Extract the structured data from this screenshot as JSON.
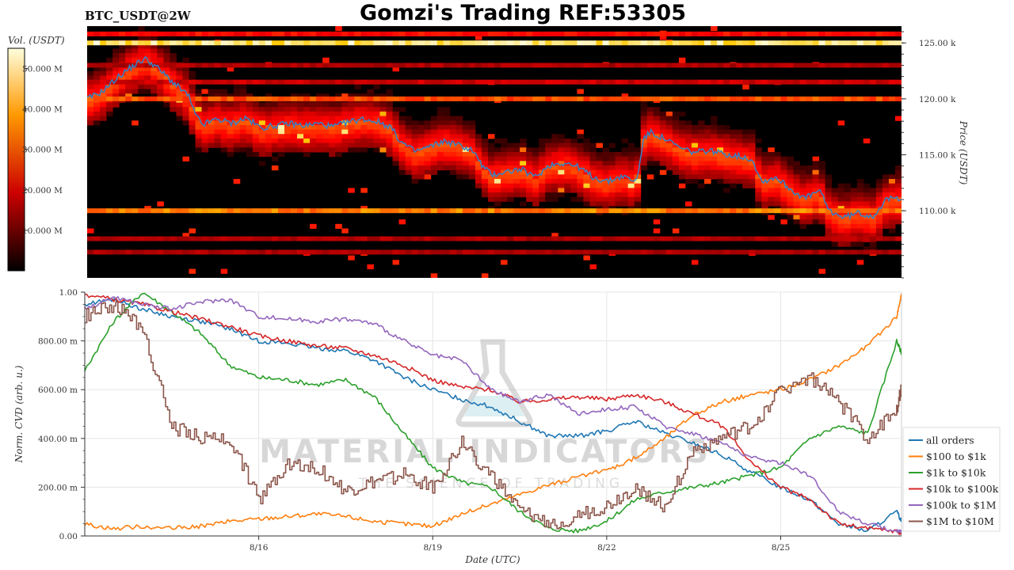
{
  "header": {
    "title": "Gomzi's Trading REF:53305",
    "symbol": "BTC_USDT@2W"
  },
  "watermark": {
    "name": "MATERIAL INDICATORS",
    "tagline": "THE SCIENCE OF TRADING"
  },
  "chart_data": [
    {
      "type": "heatmap",
      "title": "",
      "colorbar": {
        "label": "Vol. (USDT)",
        "ticks": [
          "10.000 M",
          "20.000 M",
          "30.000 M",
          "40.000 M",
          "50.000 M"
        ],
        "tick_values": [
          10,
          20,
          30,
          40,
          50
        ],
        "range": [
          0,
          55
        ],
        "colormap": "hot"
      },
      "ylabel": "Price (USDT)",
      "y_ticks": [
        "110.00 k",
        "115.00 k",
        "120.00 k",
        "125.00 k"
      ],
      "y_tick_values": [
        110,
        115,
        120,
        125
      ],
      "ylim": [
        104,
        126.5
      ],
      "xlim": [
        "8/13 00:00",
        "8/27 02:00"
      ],
      "price_line_color": "#3a7fc1",
      "price_series": [
        {
          "x": "8/13 00:00",
          "y": 120.0
        },
        {
          "x": "8/13 06:00",
          "y": 120.6
        },
        {
          "x": "8/13 12:00",
          "y": 121.8
        },
        {
          "x": "8/13 18:00",
          "y": 122.8
        },
        {
          "x": "8/14 00:00",
          "y": 123.6
        },
        {
          "x": "8/14 04:00",
          "y": 123.0
        },
        {
          "x": "8/14 08:00",
          "y": 122.2
        },
        {
          "x": "8/14 12:00",
          "y": 121.4
        },
        {
          "x": "8/14 18:00",
          "y": 120.3
        },
        {
          "x": "8/14 21:00",
          "y": 118.5
        },
        {
          "x": "8/15 00:00",
          "y": 117.7
        },
        {
          "x": "8/15 06:00",
          "y": 118.2
        },
        {
          "x": "8/15 12:00",
          "y": 117.8
        },
        {
          "x": "8/15 18:00",
          "y": 118.3
        },
        {
          "x": "8/16 00:00",
          "y": 117.4
        },
        {
          "x": "8/16 06:00",
          "y": 117.6
        },
        {
          "x": "8/16 12:00",
          "y": 117.8
        },
        {
          "x": "8/16 18:00",
          "y": 117.6
        },
        {
          "x": "8/17 00:00",
          "y": 117.8
        },
        {
          "x": "8/17 06:00",
          "y": 117.5
        },
        {
          "x": "8/17 12:00",
          "y": 117.9
        },
        {
          "x": "8/17 18:00",
          "y": 118.2
        },
        {
          "x": "8/18 00:00",
          "y": 118.0
        },
        {
          "x": "8/18 06:00",
          "y": 117.5
        },
        {
          "x": "8/18 10:00",
          "y": 116.2
        },
        {
          "x": "8/18 16:00",
          "y": 115.3
        },
        {
          "x": "8/18 22:00",
          "y": 115.7
        },
        {
          "x": "8/19 04:00",
          "y": 116.2
        },
        {
          "x": "8/19 10:00",
          "y": 115.9
        },
        {
          "x": "8/19 16:00",
          "y": 115.4
        },
        {
          "x": "8/19 20:00",
          "y": 114.0
        },
        {
          "x": "8/20 00:00",
          "y": 113.2
        },
        {
          "x": "8/20 06:00",
          "y": 113.5
        },
        {
          "x": "8/20 12:00",
          "y": 113.7
        },
        {
          "x": "8/20 18:00",
          "y": 113.0
        },
        {
          "x": "8/21 00:00",
          "y": 114.1
        },
        {
          "x": "8/21 06:00",
          "y": 114.3
        },
        {
          "x": "8/21 12:00",
          "y": 113.9
        },
        {
          "x": "8/21 18:00",
          "y": 113.0
        },
        {
          "x": "8/22 00:00",
          "y": 112.6
        },
        {
          "x": "8/22 06:00",
          "y": 113.1
        },
        {
          "x": "8/22 12:00",
          "y": 112.6
        },
        {
          "x": "8/22 15:00",
          "y": 116.5
        },
        {
          "x": "8/22 18:00",
          "y": 117.0
        },
        {
          "x": "8/23 00:00",
          "y": 116.4
        },
        {
          "x": "8/23 06:00",
          "y": 115.6
        },
        {
          "x": "8/23 12:00",
          "y": 115.2
        },
        {
          "x": "8/23 18:00",
          "y": 115.4
        },
        {
          "x": "8/24 00:00",
          "y": 115.1
        },
        {
          "x": "8/24 06:00",
          "y": 114.9
        },
        {
          "x": "8/24 12:00",
          "y": 114.6
        },
        {
          "x": "8/24 16:00",
          "y": 112.6
        },
        {
          "x": "8/24 22:00",
          "y": 113.0
        },
        {
          "x": "8/25 04:00",
          "y": 111.9
        },
        {
          "x": "8/25 10:00",
          "y": 111.1
        },
        {
          "x": "8/25 16:00",
          "y": 111.8
        },
        {
          "x": "8/25 20:00",
          "y": 110.0
        },
        {
          "x": "8/26 02:00",
          "y": 109.4
        },
        {
          "x": "8/26 08:00",
          "y": 109.8
        },
        {
          "x": "8/26 14:00",
          "y": 109.5
        },
        {
          "x": "8/26 20:00",
          "y": 111.0
        },
        {
          "x": "8/27 02:00",
          "y": 111.2
        }
      ],
      "levels": [
        {
          "price": 125.0,
          "intensity": 1.0
        },
        {
          "price": 110.0,
          "intensity": 0.7
        },
        {
          "price": 120.0,
          "intensity": 0.6
        },
        {
          "price": 125.8,
          "intensity": 0.45
        },
        {
          "price": 123.0,
          "intensity": 0.3
        },
        {
          "price": 121.5,
          "intensity": 0.35
        },
        {
          "price": 107.5,
          "intensity": 0.3
        },
        {
          "price": 106.3,
          "intensity": 0.3
        }
      ]
    },
    {
      "type": "line",
      "xlabel": "Date (UTC)",
      "ylabel": "Norm. CVD (arb. u.)",
      "x_ticks": [
        "8/16",
        "8/19",
        "8/22",
        "8/25"
      ],
      "x_tick_values": [
        "8/16 00:00",
        "8/19 00:00",
        "8/22 00:00",
        "8/25 00:00"
      ],
      "y_ticks": [
        "0.00",
        "200.00 m",
        "400.00 m",
        "600.00 m",
        "800.00 m",
        "1.00"
      ],
      "y_tick_values": [
        0,
        0.2,
        0.4,
        0.6,
        0.8,
        1.0
      ],
      "ylim": [
        0,
        1.0
      ],
      "xlim": [
        "8/13 00:00",
        "8/27 02:00"
      ],
      "grid": true,
      "legend_position": "right",
      "series": [
        {
          "name": "all orders",
          "color": "#1f77b4",
          "x": [
            "8/13 00:00",
            "8/13 12:00",
            "8/14 00:00",
            "8/14 12:00",
            "8/15 00:00",
            "8/15 12:00",
            "8/16 00:00",
            "8/16 12:00",
            "8/17 00:00",
            "8/17 12:00",
            "8/18 00:00",
            "8/18 12:00",
            "8/19 00:00",
            "8/19 12:00",
            "8/20 00:00",
            "8/20 12:00",
            "8/21 00:00",
            "8/21 12:00",
            "8/22 00:00",
            "8/22 12:00",
            "8/23 00:00",
            "8/23 12:00",
            "8/24 00:00",
            "8/24 12:00",
            "8/25 00:00",
            "8/25 12:00",
            "8/26 00:00",
            "8/26 12:00",
            "8/27 00:00",
            "8/27 02:00"
          ],
          "y": [
            0.95,
            0.97,
            0.93,
            0.9,
            0.88,
            0.85,
            0.8,
            0.79,
            0.77,
            0.76,
            0.72,
            0.65,
            0.6,
            0.56,
            0.53,
            0.47,
            0.41,
            0.41,
            0.43,
            0.47,
            0.42,
            0.38,
            0.33,
            0.26,
            0.2,
            0.15,
            0.05,
            0.02,
            0.1,
            0.06
          ]
        },
        {
          "name": "$100 to $1k",
          "color": "#ff7f0e",
          "x": [
            "8/13 00:00",
            "8/13 12:00",
            "8/14 00:00",
            "8/14 12:00",
            "8/15 00:00",
            "8/15 12:00",
            "8/16 00:00",
            "8/16 12:00",
            "8/17 00:00",
            "8/17 12:00",
            "8/18 00:00",
            "8/18 12:00",
            "8/19 00:00",
            "8/19 12:00",
            "8/20 00:00",
            "8/20 12:00",
            "8/21 00:00",
            "8/21 12:00",
            "8/22 00:00",
            "8/22 12:00",
            "8/23 00:00",
            "8/23 12:00",
            "8/24 00:00",
            "8/24 12:00",
            "8/25 00:00",
            "8/25 12:00",
            "8/26 00:00",
            "8/26 12:00",
            "8/27 00:00",
            "8/27 02:00"
          ],
          "y": [
            0.05,
            0.03,
            0.04,
            0.03,
            0.04,
            0.06,
            0.07,
            0.08,
            0.09,
            0.08,
            0.06,
            0.05,
            0.04,
            0.09,
            0.13,
            0.17,
            0.21,
            0.24,
            0.27,
            0.32,
            0.4,
            0.5,
            0.55,
            0.58,
            0.6,
            0.64,
            0.7,
            0.78,
            0.9,
            0.99
          ]
        },
        {
          "name": "$1k to $10k",
          "color": "#2ca02c",
          "x": [
            "8/13 00:00",
            "8/13 12:00",
            "8/14 00:00",
            "8/14 12:00",
            "8/15 00:00",
            "8/15 12:00",
            "8/16 00:00",
            "8/16 12:00",
            "8/17 00:00",
            "8/17 12:00",
            "8/18 00:00",
            "8/18 12:00",
            "8/19 00:00",
            "8/19 12:00",
            "8/20 00:00",
            "8/20 12:00",
            "8/21 00:00",
            "8/21 12:00",
            "8/22 00:00",
            "8/22 12:00",
            "8/23 00:00",
            "8/23 12:00",
            "8/24 00:00",
            "8/24 12:00",
            "8/25 00:00",
            "8/25 12:00",
            "8/26 00:00",
            "8/26 12:00",
            "8/27 00:00",
            "8/27 02:00"
          ],
          "y": [
            0.68,
            0.88,
            1.0,
            0.92,
            0.83,
            0.7,
            0.65,
            0.64,
            0.62,
            0.64,
            0.57,
            0.42,
            0.28,
            0.22,
            0.2,
            0.1,
            0.03,
            0.02,
            0.06,
            0.15,
            0.18,
            0.2,
            0.22,
            0.25,
            0.28,
            0.4,
            0.45,
            0.42,
            0.8,
            0.75
          ]
        },
        {
          "name": "$10k to $100k",
          "color": "#d62728",
          "x": [
            "8/13 00:00",
            "8/13 12:00",
            "8/14 00:00",
            "8/14 12:00",
            "8/15 00:00",
            "8/15 12:00",
            "8/16 00:00",
            "8/16 12:00",
            "8/17 00:00",
            "8/17 12:00",
            "8/18 00:00",
            "8/18 12:00",
            "8/19 00:00",
            "8/19 12:00",
            "8/20 00:00",
            "8/20 12:00",
            "8/21 00:00",
            "8/21 12:00",
            "8/22 00:00",
            "8/22 12:00",
            "8/23 00:00",
            "8/23 12:00",
            "8/24 00:00",
            "8/24 12:00",
            "8/25 00:00",
            "8/25 12:00",
            "8/26 00:00",
            "8/26 12:00",
            "8/27 00:00",
            "8/27 02:00"
          ],
          "y": [
            0.99,
            0.97,
            0.95,
            0.92,
            0.89,
            0.86,
            0.82,
            0.8,
            0.78,
            0.77,
            0.74,
            0.7,
            0.64,
            0.61,
            0.6,
            0.55,
            0.56,
            0.57,
            0.56,
            0.58,
            0.55,
            0.5,
            0.45,
            0.3,
            0.2,
            0.15,
            0.05,
            0.03,
            0.02,
            0.01
          ]
        },
        {
          "name": "$100k to $1M",
          "color": "#9467bd",
          "x": [
            "8/13 00:00",
            "8/13 12:00",
            "8/14 00:00",
            "8/14 12:00",
            "8/15 00:00",
            "8/15 12:00",
            "8/16 00:00",
            "8/16 12:00",
            "8/17 00:00",
            "8/17 12:00",
            "8/18 00:00",
            "8/18 12:00",
            "8/19 00:00",
            "8/19 12:00",
            "8/20 00:00",
            "8/20 12:00",
            "8/21 00:00",
            "8/21 12:00",
            "8/22 00:00",
            "8/22 12:00",
            "8/23 00:00",
            "8/23 12:00",
            "8/24 00:00",
            "8/24 12:00",
            "8/25 00:00",
            "8/25 12:00",
            "8/26 00:00",
            "8/26 12:00",
            "8/27 00:00",
            "8/27 02:00"
          ],
          "y": [
            0.93,
            0.98,
            0.95,
            0.93,
            0.96,
            0.97,
            0.9,
            0.89,
            0.88,
            0.89,
            0.87,
            0.8,
            0.74,
            0.72,
            0.6,
            0.55,
            0.58,
            0.5,
            0.52,
            0.53,
            0.45,
            0.42,
            0.38,
            0.32,
            0.3,
            0.25,
            0.1,
            0.05,
            0.02,
            0.02
          ]
        },
        {
          "name": "$1M to $10M",
          "color": "#8c564b",
          "x": [
            "8/13 00:00",
            "8/13 12:00",
            "8/14 00:00",
            "8/14 12:00",
            "8/15 00:00",
            "8/15 12:00",
            "8/16 00:00",
            "8/16 12:00",
            "8/17 00:00",
            "8/17 12:00",
            "8/18 00:00",
            "8/18 12:00",
            "8/19 00:00",
            "8/19 12:00",
            "8/20 00:00",
            "8/20 12:00",
            "8/21 00:00",
            "8/21 12:00",
            "8/22 00:00",
            "8/22 12:00",
            "8/23 00:00",
            "8/23 12:00",
            "8/24 00:00",
            "8/24 12:00",
            "8/25 00:00",
            "8/25 12:00",
            "8/26 00:00",
            "8/26 12:00",
            "8/27 00:00",
            "8/27 02:00"
          ],
          "y": [
            0.9,
            0.95,
            0.85,
            0.45,
            0.4,
            0.4,
            0.15,
            0.3,
            0.28,
            0.18,
            0.22,
            0.25,
            0.2,
            0.38,
            0.25,
            0.1,
            0.05,
            0.08,
            0.12,
            0.2,
            0.12,
            0.35,
            0.4,
            0.45,
            0.6,
            0.65,
            0.55,
            0.4,
            0.52,
            0.61
          ]
        }
      ]
    }
  ]
}
